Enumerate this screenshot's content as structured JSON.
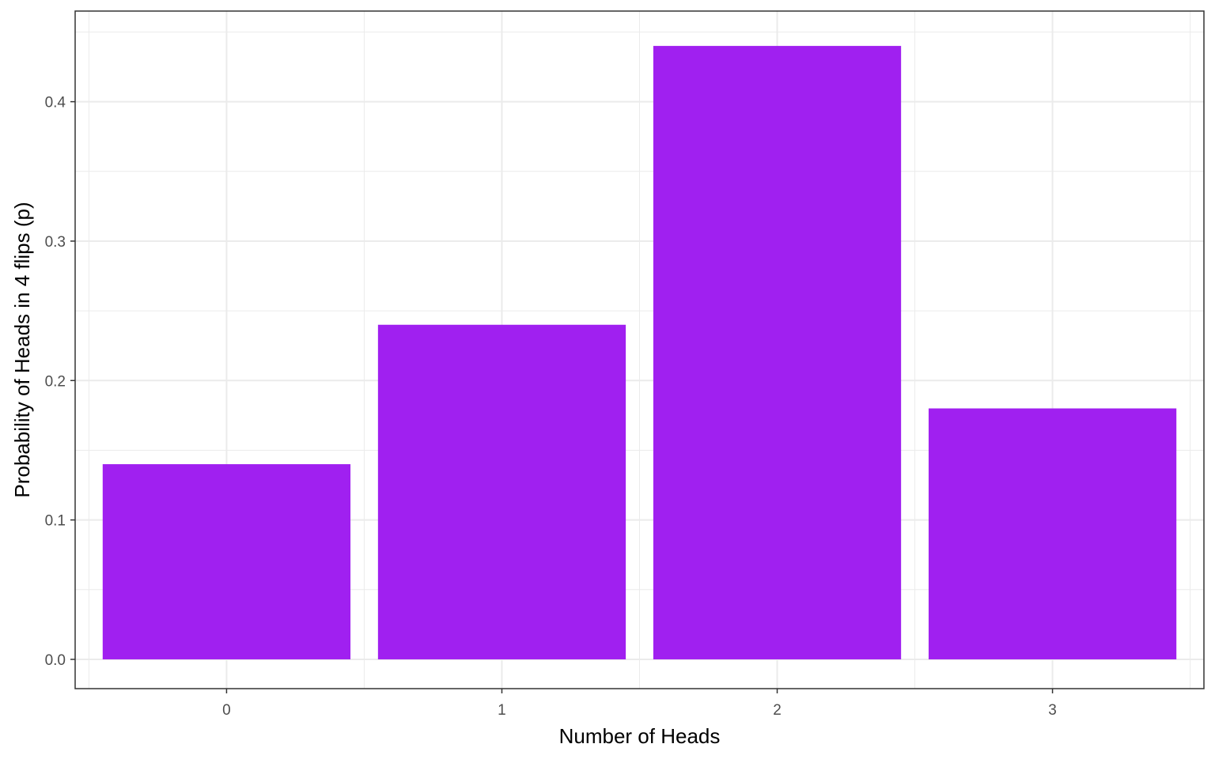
{
  "chart_data": {
    "type": "bar",
    "categories": [
      "0",
      "1",
      "2",
      "3"
    ],
    "values": [
      0.14,
      0.24,
      0.44,
      0.18
    ],
    "title": "",
    "xlabel": "Number of Heads",
    "ylabel": "Probability of Heads in 4 flips (p)",
    "ylim": [
      -0.021,
      0.465
    ],
    "xlim": [
      -0.55,
      3.55
    ],
    "y_ticks": [
      0.0,
      0.1,
      0.2,
      0.3,
      0.4
    ],
    "y_tick_labels": [
      "0.0",
      "0.1",
      "0.2",
      "0.3",
      "0.4"
    ],
    "grid": true,
    "legend": "none",
    "colors": {
      "bar": "#a020f0",
      "grid": "#ebebeb",
      "panel_border": "#333333",
      "tick_text": "#4d4d4d"
    }
  }
}
